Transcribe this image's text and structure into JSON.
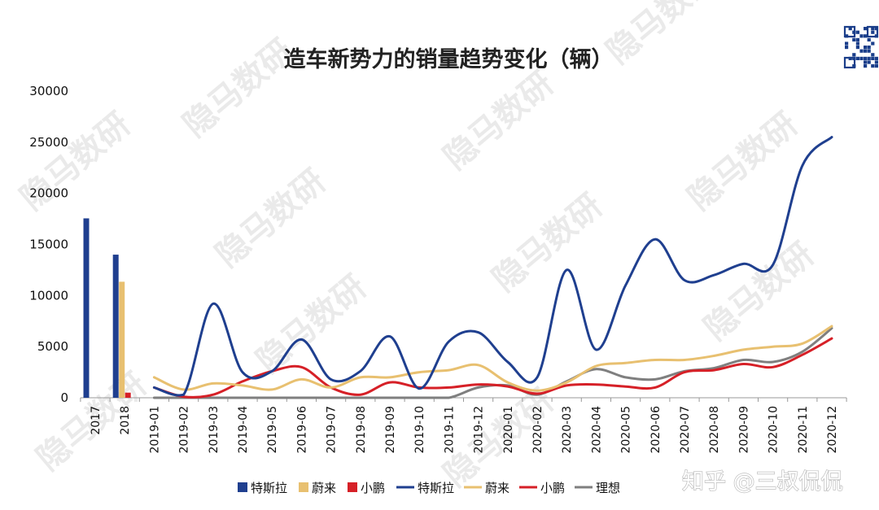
{
  "watermark": "隐马数研",
  "source_mark": "知乎 @三叔侃侃",
  "colors": {
    "tesla": "#1f3f8f",
    "nio": "#e8c070",
    "xpeng": "#d62027",
    "lixiang": "#7f7f7f"
  },
  "chart_data": {
    "type": "bar+line",
    "title": "造车新势力的销量趋势变化（辆）",
    "ylim": [
      0,
      30000
    ],
    "yticks": [
      "0",
      "5000",
      "10000",
      "15000",
      "20000",
      "25000",
      "30000"
    ],
    "categories": [
      "2017",
      "2018",
      "2019-01",
      "2019-02",
      "2019-03",
      "2019-04",
      "2019-05",
      "2019-06",
      "2019-07",
      "2019-08",
      "2019-09",
      "2019-10",
      "2019-11",
      "2019-12",
      "2020-01",
      "2020-02",
      "2020-03",
      "2020-04",
      "2020-05",
      "2020-06",
      "2020-07",
      "2020-08",
      "2020-09",
      "2020-10",
      "2020-11",
      "2020-12"
    ],
    "bar_series": [
      {
        "name": "特斯拉",
        "color": "#1f3f8f",
        "values": [
          17550,
          14000
        ]
      },
      {
        "name": "蔚来",
        "color": "#e8c070",
        "values": [
          0,
          11350
        ]
      },
      {
        "name": "小鹏",
        "color": "#d62027",
        "values": [
          0,
          500
        ]
      }
    ],
    "line_categories_start": 2,
    "line_series": [
      {
        "name": "特斯拉",
        "color": "#1f3f8f",
        "values": [
          1000,
          300,
          9200,
          2500,
          2600,
          5700,
          1800,
          2600,
          6000,
          900,
          5500,
          6400,
          3500,
          2000,
          12500,
          4700,
          11000,
          15500,
          11500,
          12000,
          13100,
          13000,
          22700,
          25500
        ]
      },
      {
        "name": "蔚来",
        "color": "#e8c070",
        "values": [
          2000,
          800,
          1400,
          1200,
          800,
          1800,
          1000,
          2000,
          2000,
          2500,
          2700,
          3200,
          1500,
          700,
          1500,
          3100,
          3400,
          3700,
          3700,
          4100,
          4700,
          5000,
          5300,
          7000
        ]
      },
      {
        "name": "小鹏",
        "color": "#d62027",
        "values": [
          1000,
          100,
          300,
          1600,
          2600,
          3000,
          1000,
          300,
          1500,
          1000,
          1000,
          1300,
          1100,
          400,
          1200,
          1300,
          1100,
          1000,
          2500,
          2700,
          3300,
          3000,
          4200,
          5800
        ]
      },
      {
        "name": "理想",
        "color": "#7f7f7f",
        "values": [
          0,
          0,
          0,
          0,
          0,
          0,
          0,
          0,
          0,
          0,
          0,
          1000,
          1200,
          300,
          1600,
          2800,
          2000,
          1800,
          2600,
          2900,
          3700,
          3500,
          4500,
          6800
        ]
      }
    ],
    "legend": {
      "position": "bottom",
      "entries": [
        {
          "kind": "bar",
          "name": "特斯拉",
          "color": "#1f3f8f"
        },
        {
          "kind": "bar",
          "name": "蔚来",
          "color": "#e8c070"
        },
        {
          "kind": "bar",
          "name": "小鹏",
          "color": "#d62027"
        },
        {
          "kind": "line",
          "name": "特斯拉",
          "color": "#1f3f8f"
        },
        {
          "kind": "line",
          "name": "蔚来",
          "color": "#e8c070"
        },
        {
          "kind": "line",
          "name": "小鹏",
          "color": "#d62027"
        },
        {
          "kind": "line",
          "name": "理想",
          "color": "#7f7f7f"
        }
      ]
    },
    "grid": false
  }
}
